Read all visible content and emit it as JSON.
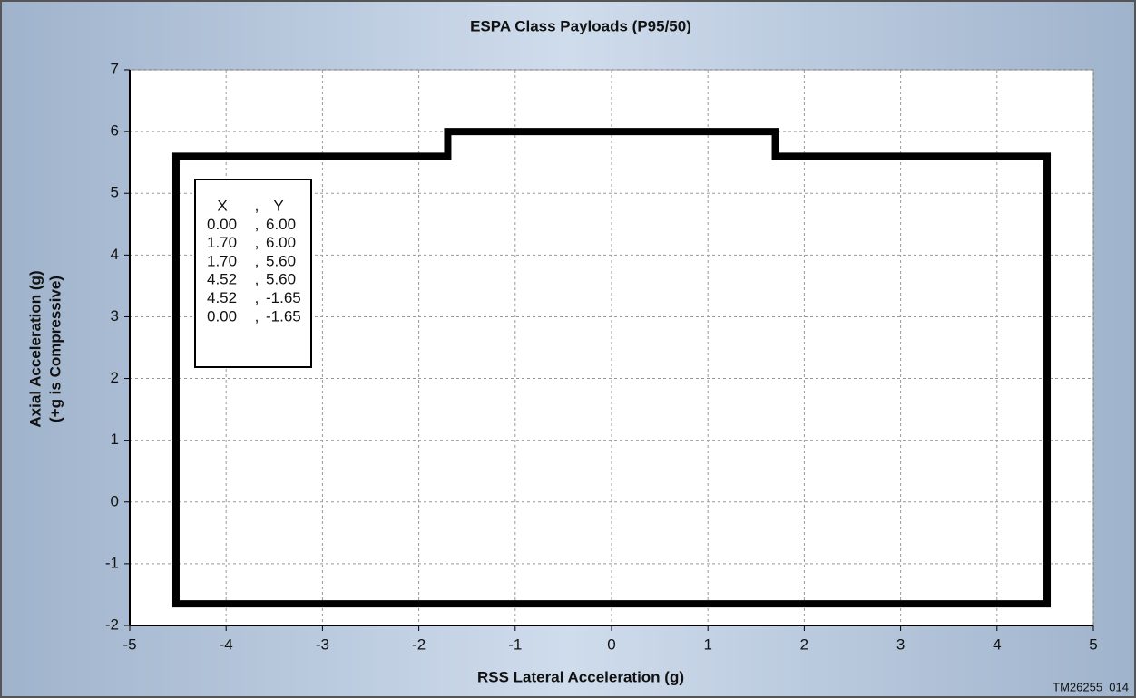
{
  "chart_data": {
    "type": "line",
    "title": "ESPA Class Payloads (P95/50)",
    "xlabel": "RSS Lateral Acceleration (g)",
    "ylabel": [
      "Axial Acceleration (g)",
      "(+g is Compressive)"
    ],
    "x": [
      -4.52,
      -4.52,
      -1.7,
      -1.7,
      1.7,
      1.7,
      4.52,
      4.52,
      -4.52
    ],
    "series": [
      {
        "color": "#000000",
        "values": [
          -1.65,
          5.6,
          5.6,
          6,
          6,
          5.6,
          5.6,
          -1.65,
          -1.65
        ]
      }
    ],
    "xlim": [
      -5,
      5
    ],
    "xticks": [
      -5,
      -4,
      -3,
      -2,
      -1,
      0,
      1,
      2,
      3,
      4,
      5
    ],
    "ylim": [
      -2,
      7
    ],
    "yticks": [
      -2,
      -1,
      0,
      1,
      2,
      3,
      4,
      5,
      6,
      7
    ],
    "grid": true,
    "table": {
      "columns": [
        "X",
        "Y"
      ],
      "separator": ",",
      "rows": [
        [
          "0.00",
          "6.00"
        ],
        [
          "1.70",
          "6.00"
        ],
        [
          "1.70",
          "5.60"
        ],
        [
          "4.52",
          "5.60"
        ],
        [
          "4.52",
          "-1.65"
        ],
        [
          "0.00",
          "-1.65"
        ]
      ]
    },
    "footnote": "TM26255_014"
  }
}
